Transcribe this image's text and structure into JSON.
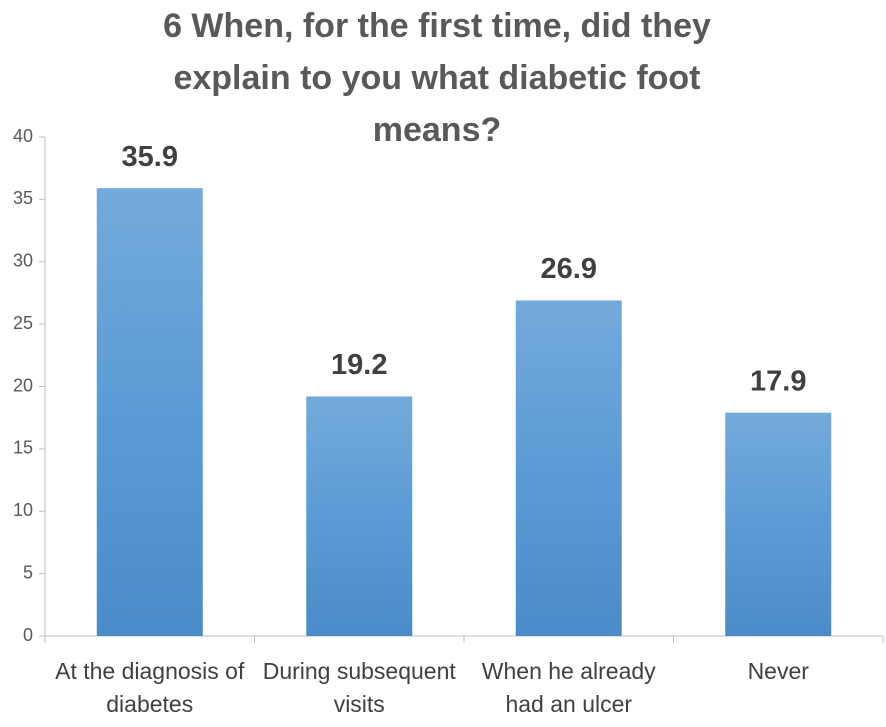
{
  "chart_data": {
    "type": "bar",
    "title": "6 When, for the first time, did they explain to you what diabetic foot means?",
    "categories": [
      "At the diagnosis of diabetes",
      "During subsequent visits",
      "When he already had an ulcer",
      "Never"
    ],
    "values": [
      35.9,
      19.2,
      26.9,
      17.9
    ],
    "color": "#5b9bd5",
    "ylim": [
      0,
      40
    ],
    "yticks": [
      0,
      5,
      10,
      15,
      20,
      25,
      30,
      35,
      40
    ],
    "grid": false
  }
}
